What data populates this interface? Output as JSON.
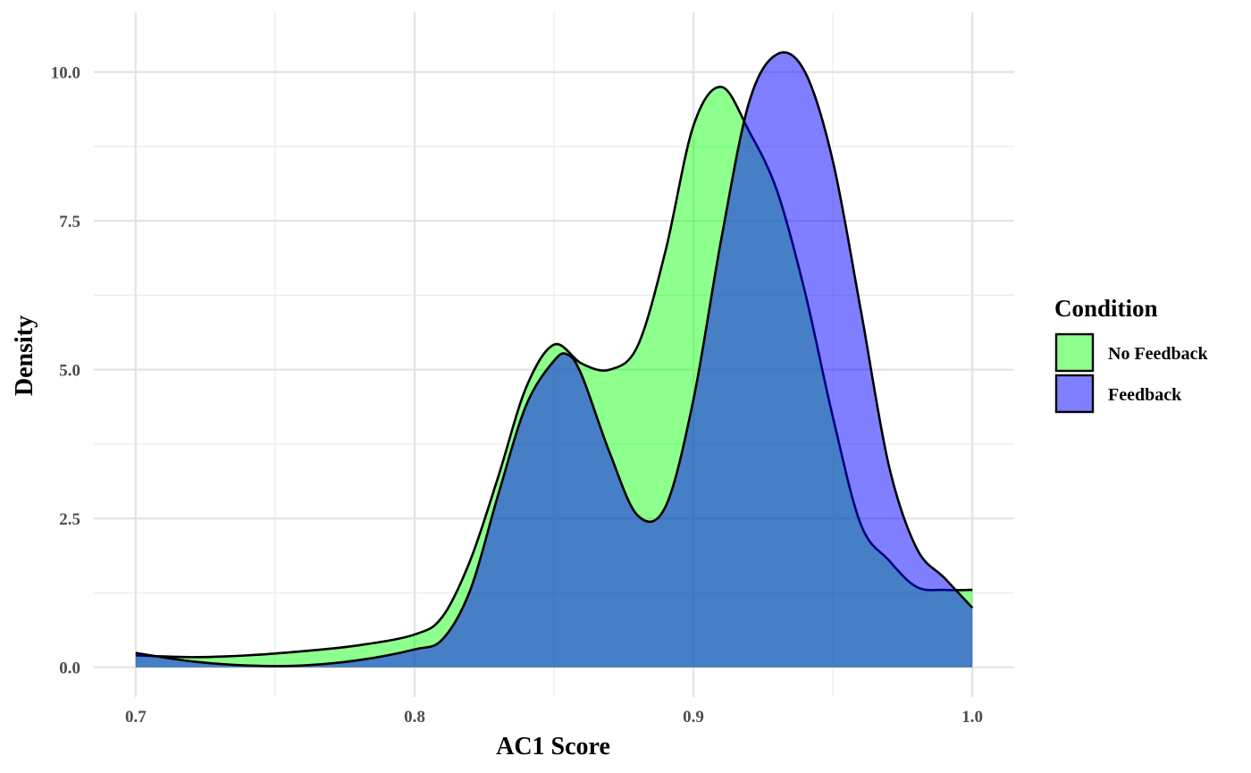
{
  "chart_data": {
    "type": "area",
    "subtype": "density",
    "xlabel": "AC1 Score",
    "ylabel": "Density",
    "xlim": [
      0.685,
      1.015
    ],
    "ylim": [
      -0.5,
      11.0
    ],
    "x_ticks": [
      0.7,
      0.8,
      0.9,
      1.0
    ],
    "x_tick_labels": [
      "0.7",
      "0.8",
      "0.9",
      "1.0"
    ],
    "y_ticks": [
      0.0,
      2.5,
      5.0,
      7.5,
      10.0
    ],
    "y_tick_labels": [
      "0.0",
      "2.5",
      "5.0",
      "7.5",
      "10.0"
    ],
    "grid": true,
    "legend": {
      "title": "Condition",
      "position": "right"
    },
    "series": [
      {
        "name": "No Feedback",
        "color": "#00FF00",
        "opacity": 0.45,
        "x": [
          0.7,
          0.72,
          0.74,
          0.76,
          0.78,
          0.8,
          0.81,
          0.82,
          0.83,
          0.84,
          0.85,
          0.86,
          0.87,
          0.88,
          0.89,
          0.9,
          0.91,
          0.92,
          0.93,
          0.94,
          0.95,
          0.96,
          0.97,
          0.98,
          0.99,
          1.0
        ],
        "values": [
          0.2,
          0.17,
          0.2,
          0.27,
          0.37,
          0.55,
          0.85,
          1.8,
          3.2,
          4.7,
          5.42,
          5.1,
          5.0,
          5.4,
          7.0,
          9.1,
          9.75,
          9.0,
          8.0,
          6.3,
          4.2,
          2.4,
          1.8,
          1.35,
          1.3,
          1.3
        ]
      },
      {
        "name": "Feedback",
        "color": "#0000FF",
        "opacity": 0.5,
        "x": [
          0.7,
          0.72,
          0.74,
          0.76,
          0.78,
          0.8,
          0.81,
          0.82,
          0.83,
          0.84,
          0.85,
          0.855,
          0.86,
          0.87,
          0.88,
          0.89,
          0.9,
          0.91,
          0.92,
          0.93,
          0.94,
          0.95,
          0.96,
          0.97,
          0.98,
          0.99,
          1.0
        ],
        "values": [
          0.24,
          0.1,
          0.03,
          0.03,
          0.12,
          0.3,
          0.47,
          1.3,
          2.9,
          4.4,
          5.15,
          5.25,
          4.9,
          3.6,
          2.55,
          2.7,
          4.5,
          7.2,
          9.5,
          10.3,
          10.0,
          8.5,
          6.0,
          3.4,
          2.0,
          1.5,
          1.0
        ]
      }
    ]
  }
}
